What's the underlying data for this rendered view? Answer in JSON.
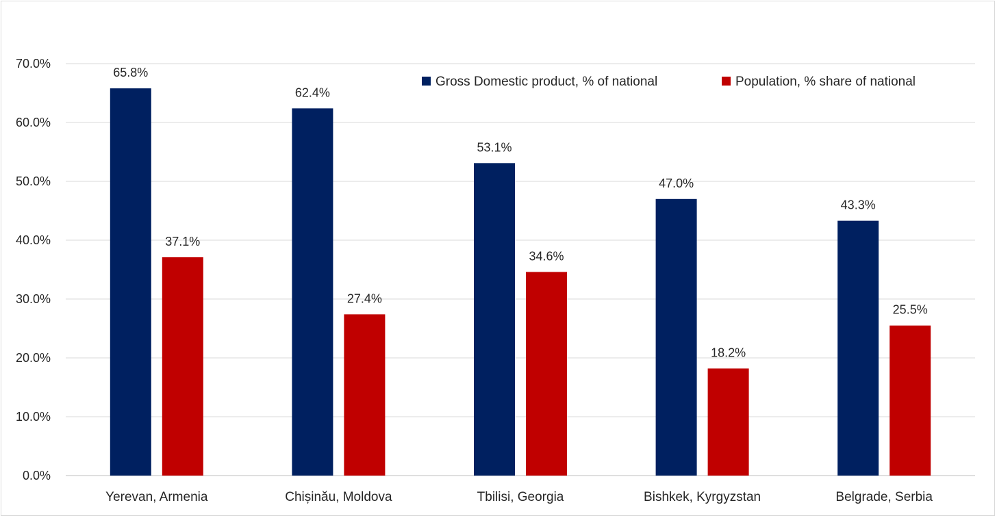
{
  "chart_data": {
    "type": "bar",
    "title": "",
    "xlabel": "",
    "ylabel": "",
    "categories": [
      "Yerevan, Armenia",
      "Chișinău, Moldova",
      "Tbilisi, Georgia",
      "Bishkek, Kyrgyzstan",
      "Belgrade, Serbia"
    ],
    "series": [
      {
        "name": "Gross Domestic product, % of national",
        "color": "#002060",
        "values": [
          65.8,
          62.4,
          53.1,
          47.0,
          43.3
        ]
      },
      {
        "name": "Population, % share of national",
        "color": "#C00000",
        "values": [
          37.1,
          27.4,
          34.6,
          18.2,
          25.5
        ]
      }
    ],
    "ylim": [
      0,
      70
    ],
    "yticks": [
      0,
      10,
      20,
      30,
      40,
      50,
      60,
      70
    ],
    "ytick_labels": [
      "0.0%",
      "10.0%",
      "20.0%",
      "30.0%",
      "40.0%",
      "50.0%",
      "60.0%",
      "70.0%"
    ],
    "value_format_suffix": "%",
    "grid": true,
    "legend_position": "top-right"
  }
}
